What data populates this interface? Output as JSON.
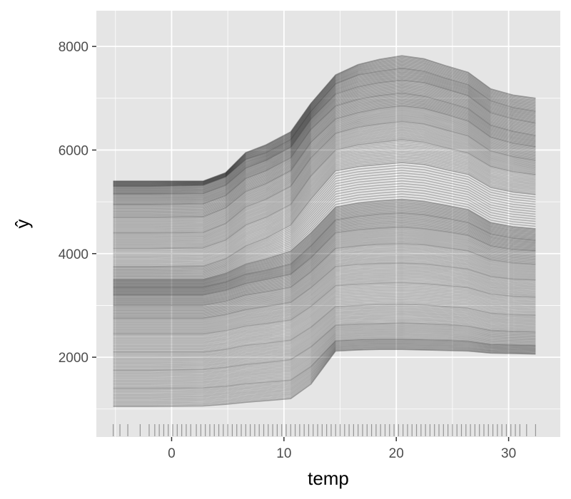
{
  "chart_data": {
    "type": "line",
    "title": "",
    "xlabel": "temp",
    "ylabel": "ŷ",
    "xlim": [
      -6.7,
      34.6
    ],
    "ylim": [
      460,
      8690
    ],
    "x_ticks": [
      0,
      10,
      20,
      30
    ],
    "y_ticks": [
      2000,
      4000,
      6000,
      8000
    ],
    "x_tick_labels": [
      "0",
      "10",
      "20",
      "30"
    ],
    "y_tick_labels": [
      "2000",
      "4000",
      "6000",
      "8000"
    ],
    "grid": true,
    "panel_background": "#e5e5e5",
    "grid_color": "#ffffff",
    "line_color": "#000000",
    "line_alpha": 0.22,
    "x": [
      -5.2,
      -2.0,
      2.8,
      4.8,
      6.6,
      8.4,
      10.6,
      12.4,
      14.6,
      16.6,
      18.5,
      20.5,
      22.5,
      24.5,
      26.4,
      28.4,
      30.4,
      32.4
    ],
    "series": [
      {
        "values": [
          5400,
          5400,
          5400,
          5560,
          5950,
          6100,
          6350,
          6900,
          7450,
          7650,
          7750,
          7820,
          7760,
          7620,
          7500,
          7180,
          7060,
          7000
        ]
      },
      {
        "values": [
          5300,
          5300,
          5320,
          5480,
          5820,
          5950,
          6200,
          6750,
          7280,
          7450,
          7520,
          7580,
          7520,
          7380,
          7260,
          6950,
          6820,
          6750
        ]
      },
      {
        "values": [
          5150,
          5150,
          5160,
          5320,
          5650,
          5800,
          6050,
          6600,
          7080,
          7220,
          7300,
          7350,
          7300,
          7170,
          7050,
          6720,
          6600,
          6520
        ]
      },
      {
        "values": [
          4950,
          4950,
          4960,
          5120,
          5450,
          5600,
          5850,
          6400,
          6850,
          6980,
          7050,
          7100,
          7040,
          6920,
          6800,
          6480,
          6360,
          6280
        ]
      },
      {
        "values": [
          4700,
          4700,
          4710,
          4880,
          5200,
          5350,
          5600,
          6150,
          6600,
          6720,
          6800,
          6850,
          6800,
          6680,
          6560,
          6250,
          6130,
          6060
        ]
      },
      {
        "values": [
          4400,
          4400,
          4410,
          4580,
          4900,
          5050,
          5300,
          5850,
          6320,
          6440,
          6500,
          6550,
          6500,
          6380,
          6270,
          5980,
          5870,
          5800
        ]
      },
      {
        "values": [
          4100,
          4100,
          4110,
          4260,
          4550,
          4700,
          4950,
          5500,
          6000,
          6100,
          6150,
          6200,
          6150,
          6040,
          5940,
          5680,
          5580,
          5520
        ]
      },
      {
        "values": [
          3750,
          3750,
          3760,
          3900,
          4150,
          4300,
          4550,
          5050,
          5600,
          5680,
          5720,
          5760,
          5720,
          5620,
          5530,
          5280,
          5190,
          5140
        ]
      },
      {
        "values": [
          3500,
          3500,
          3500,
          3620,
          3800,
          3900,
          4050,
          4400,
          4900,
          4980,
          5020,
          5050,
          5010,
          4930,
          4850,
          4600,
          4520,
          4480
        ]
      },
      {
        "values": [
          3350,
          3350,
          3350,
          3450,
          3600,
          3680,
          3800,
          4150,
          4650,
          4720,
          4760,
          4780,
          4750,
          4680,
          4600,
          4380,
          4300,
          4260
        ]
      },
      {
        "values": [
          3200,
          3200,
          3200,
          3290,
          3420,
          3500,
          3600,
          3920,
          4400,
          4460,
          4490,
          4510,
          4480,
          4420,
          4350,
          4150,
          4080,
          4050
        ]
      },
      {
        "values": [
          3000,
          3000,
          3000,
          3080,
          3200,
          3260,
          3350,
          3650,
          4100,
          4150,
          4180,
          4190,
          4170,
          4110,
          4050,
          3880,
          3820,
          3790
        ]
      },
      {
        "values": [
          2750,
          2750,
          2750,
          2820,
          2920,
          2980,
          3060,
          3340,
          3750,
          3790,
          3810,
          3820,
          3800,
          3750,
          3700,
          3560,
          3510,
          3490
        ]
      },
      {
        "values": [
          2450,
          2450,
          2450,
          2510,
          2600,
          2650,
          2720,
          2980,
          3380,
          3410,
          3430,
          3440,
          3420,
          3380,
          3340,
          3220,
          3180,
          3160
        ]
      },
      {
        "values": [
          2100,
          2100,
          2100,
          2150,
          2230,
          2270,
          2330,
          2580,
          2980,
          3000,
          3020,
          3030,
          3010,
          2980,
          2950,
          2850,
          2820,
          2810
        ]
      },
      {
        "values": [
          1750,
          1750,
          1760,
          1800,
          1860,
          1900,
          1950,
          2200,
          2620,
          2640,
          2650,
          2660,
          2650,
          2630,
          2600,
          2520,
          2500,
          2490
        ]
      },
      {
        "values": [
          1400,
          1400,
          1410,
          1440,
          1490,
          1520,
          1560,
          1820,
          2320,
          2340,
          2350,
          2350,
          2340,
          2330,
          2310,
          2250,
          2240,
          2230
        ]
      },
      {
        "values": [
          1050,
          1050,
          1060,
          1090,
          1130,
          1160,
          1200,
          1480,
          2120,
          2140,
          2150,
          2150,
          2140,
          2130,
          2120,
          2080,
          2070,
          2060
        ]
      }
    ],
    "rug_x": [
      -5.2,
      -4.6,
      -3.9,
      -2.8,
      -2.0,
      -1.5,
      -1.1,
      -0.7,
      -0.3,
      0.1,
      0.5,
      0.9,
      1.3,
      1.7,
      2.2,
      2.6,
      3.0,
      3.4,
      3.8,
      4.2,
      4.6,
      5.0,
      5.4,
      5.8,
      6.2,
      6.6,
      7.0,
      7.4,
      7.8,
      8.2,
      8.6,
      9.0,
      9.4,
      9.8,
      10.2,
      10.6,
      11.0,
      11.4,
      11.8,
      12.2,
      12.6,
      13.0,
      13.4,
      13.8,
      14.2,
      14.6,
      15.0,
      15.4,
      15.8,
      16.2,
      16.6,
      17.0,
      17.4,
      17.8,
      18.2,
      18.6,
      19.0,
      19.4,
      19.8,
      20.2,
      20.6,
      21.0,
      21.4,
      21.8,
      22.2,
      22.6,
      23.0,
      23.4,
      23.8,
      24.2,
      24.6,
      25.0,
      25.4,
      25.8,
      26.2,
      26.6,
      27.0,
      27.4,
      27.8,
      28.2,
      28.6,
      29.0,
      29.4,
      29.8,
      30.2,
      30.6,
      31.0,
      31.6,
      32.4
    ]
  }
}
